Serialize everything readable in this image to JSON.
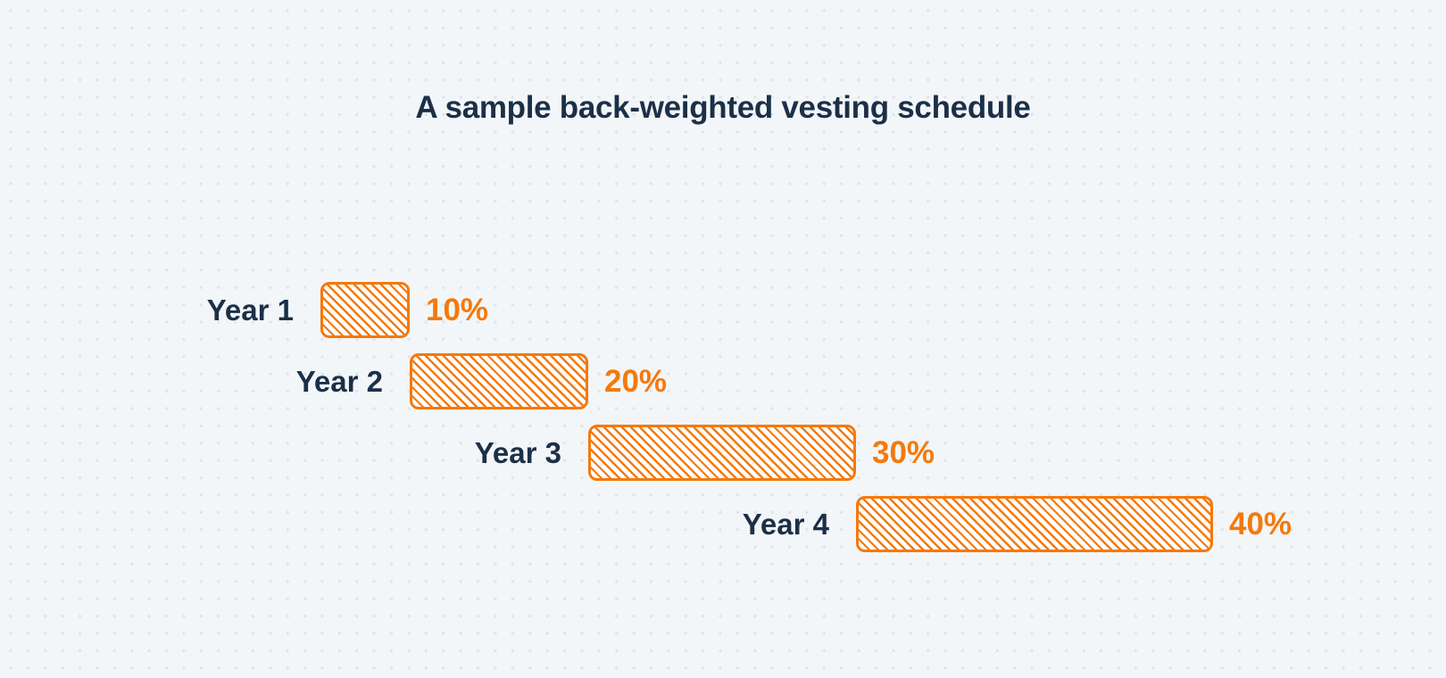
{
  "title": "A sample back-weighted vesting schedule",
  "colors": {
    "background": "#f3f6f9",
    "dot": "#dfe4ec",
    "navy": "#1b3047",
    "orange": "#f5790c"
  },
  "chart_data": {
    "type": "bar",
    "subtype": "horizontal-waterfall",
    "title": "A sample back-weighted vesting schedule",
    "categories": [
      "Year 1",
      "Year 2",
      "Year 3",
      "Year 4"
    ],
    "values": [
      10,
      20,
      30,
      40
    ],
    "value_labels": [
      "10%",
      "20%",
      "30%",
      "40%"
    ],
    "unit": "%",
    "total": 100,
    "bar_fill": "white with orange diagonal hatch (backslash direction)",
    "layout": "each bar begins horizontally where the previous bar ends; bar length proportional to percent; category label left of bar, percent label right of bar",
    "grid": "dotted background grid, no axes"
  }
}
